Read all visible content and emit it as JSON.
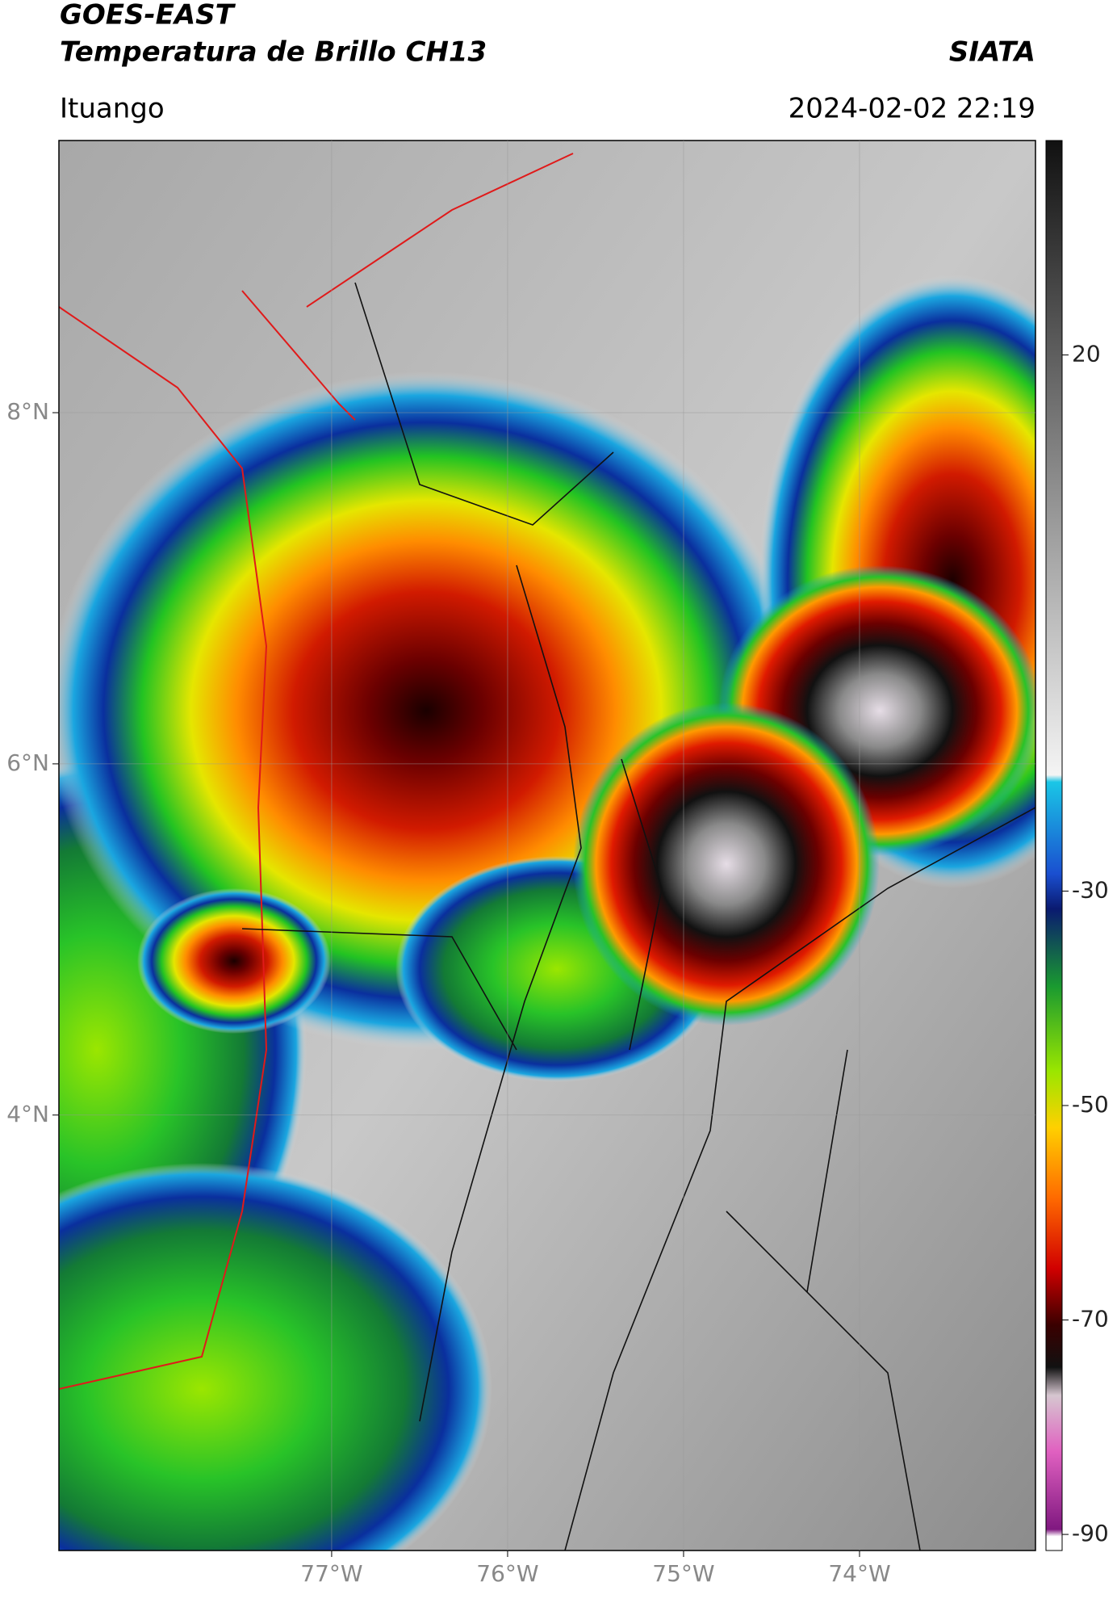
{
  "header": {
    "title": "GOES-EAST",
    "subtitle": "Temperatura de Brillo CH13",
    "organization": "SIATA",
    "location": "Ituango",
    "timestamp": "2024-02-02 22:19"
  },
  "map": {
    "xlim": [
      -78.55,
      -73.0
    ],
    "ylim": [
      1.52,
      9.55
    ],
    "xticks": [
      {
        "value": -77,
        "label": "77°W"
      },
      {
        "value": -76,
        "label": "76°W"
      },
      {
        "value": -75,
        "label": "75°W"
      },
      {
        "value": -74,
        "label": "74°W"
      }
    ],
    "yticks": [
      {
        "value": 4,
        "label": "4°N"
      },
      {
        "value": 6,
        "label": "6°N"
      },
      {
        "value": 8,
        "label": "8°N"
      }
    ],
    "grid": true
  },
  "colorbar": {
    "lim": [
      -91.5,
      40
    ],
    "ticks": [
      20,
      -30,
      -50,
      -70,
      -90
    ]
  }
}
